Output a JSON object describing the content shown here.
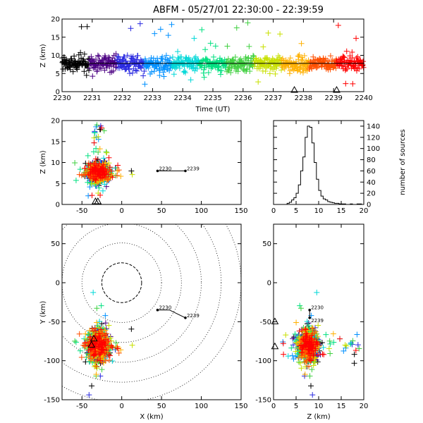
{
  "title": "ABFM - 05/27/01 22:30:00 - 22:39:59",
  "colors": {
    "time_scale": [
      "#000000",
      "#4b0082",
      "#2a2ae0",
      "#0090ff",
      "#00d8d8",
      "#00e080",
      "#40d040",
      "#c8e000",
      "#ffb000",
      "#ff5000",
      "#ff0000"
    ]
  },
  "chart_data": [
    {
      "id": "time_height",
      "type": "scatter",
      "xlabel": "Time (UT)",
      "ylabel": "Z (km)",
      "xlim": [
        2230,
        2240
      ],
      "ylim": [
        0,
        20
      ],
      "xticks": [
        2230,
        2231,
        2232,
        2233,
        2234,
        2235,
        2236,
        2237,
        2238,
        2239,
        2240
      ],
      "yticks": [
        0,
        5,
        10,
        15,
        20
      ],
      "trend_line": [
        [
          2230,
          7.8
        ],
        [
          2240,
          7.8
        ]
      ],
      "triangle_markers": [
        2237.7,
        2239.1
      ],
      "point_summary": {
        "z_core_range": [
          5,
          11
        ],
        "z_max": 19,
        "count_approx": 900
      }
    },
    {
      "id": "x_height",
      "type": "scatter",
      "xlabel": "",
      "ylabel": "Z (km)",
      "xlim": [
        -75,
        150
      ],
      "ylim": [
        0,
        20
      ],
      "xticks": [
        -50,
        0,
        50,
        100,
        150
      ],
      "yticks": [
        0,
        5,
        10,
        15,
        20
      ],
      "annotation_line": {
        "start_label": "2230",
        "end_label": "2239",
        "points": [
          [
            45,
            8
          ],
          [
            80,
            8
          ]
        ]
      },
      "triangle_markers": [
        -33,
        -30
      ],
      "point_summary": {
        "x_range": [
          -60,
          20
        ],
        "z_core_range": [
          5,
          12
        ]
      }
    },
    {
      "id": "height_histogram",
      "type": "bar",
      "xlabel": "",
      "ylabel": "number of sources",
      "xlim": [
        0,
        20
      ],
      "ylim": [
        0,
        150
      ],
      "xticks": [
        0,
        5,
        10,
        15,
        20
      ],
      "yticks": [
        0,
        20,
        40,
        60,
        80,
        100,
        120,
        140
      ],
      "bin_width_km": 0.5,
      "bins_start": [
        3,
        3.5,
        4,
        4.5,
        5,
        5.5,
        6,
        6.5,
        7,
        7.5,
        8,
        8.5,
        9,
        9.5,
        10,
        10.5,
        11,
        11.5,
        12,
        12.5,
        13,
        13.5,
        14,
        14.5,
        15,
        15.5,
        16,
        16.5,
        17,
        17.5,
        18,
        18.5,
        19
      ],
      "values": [
        2,
        4,
        8,
        12,
        20,
        35,
        60,
        85,
        120,
        140,
        138,
        110,
        75,
        45,
        25,
        15,
        10,
        8,
        5,
        4,
        3,
        2,
        2,
        1,
        1,
        1,
        0,
        0,
        1,
        0,
        0,
        1,
        1
      ]
    },
    {
      "id": "plan_view",
      "type": "scatter",
      "xlabel": "X (km)",
      "ylabel": "Y (km)",
      "xlim": [
        -75,
        150
      ],
      "ylim": [
        -150,
        75
      ],
      "xticks": [
        -50,
        0,
        50,
        100,
        150
      ],
      "yticks": [
        -150,
        -100,
        -50,
        0,
        50
      ],
      "range_rings_km": [
        25,
        50,
        75,
        100,
        125,
        150
      ],
      "inner_ring_dashed_km": 25,
      "annotation_line": {
        "start_label": "2230",
        "end_label": "2239",
        "points": [
          [
            45,
            -35
          ],
          [
            60,
            -35
          ],
          [
            70,
            -40
          ],
          [
            80,
            -45
          ]
        ]
      },
      "triangle_markers": [
        [
          -35,
          -72
        ],
        [
          -38,
          -80
        ]
      ],
      "point_summary": {
        "x_range": [
          -60,
          -10
        ],
        "y_range": [
          -110,
          -40
        ]
      }
    },
    {
      "id": "height_y",
      "type": "scatter",
      "xlabel": "Z (km)",
      "ylabel": "",
      "xlim": [
        0,
        20
      ],
      "ylim": [
        -150,
        75
      ],
      "xticks": [
        0,
        5,
        10,
        15,
        20
      ],
      "yticks": [
        -150,
        -100,
        -50,
        0,
        50
      ],
      "annotation_line": {
        "start_label": "2230",
        "end_label": "2239",
        "points": [
          [
            8,
            -35
          ],
          [
            8,
            -45
          ]
        ]
      },
      "triangle_markers": [
        [
          0.3,
          -50
        ],
        [
          0.3,
          -82
        ]
      ],
      "point_summary": {
        "z_core_range": [
          5,
          12
        ],
        "y_range": [
          -110,
          -40
        ]
      }
    }
  ]
}
